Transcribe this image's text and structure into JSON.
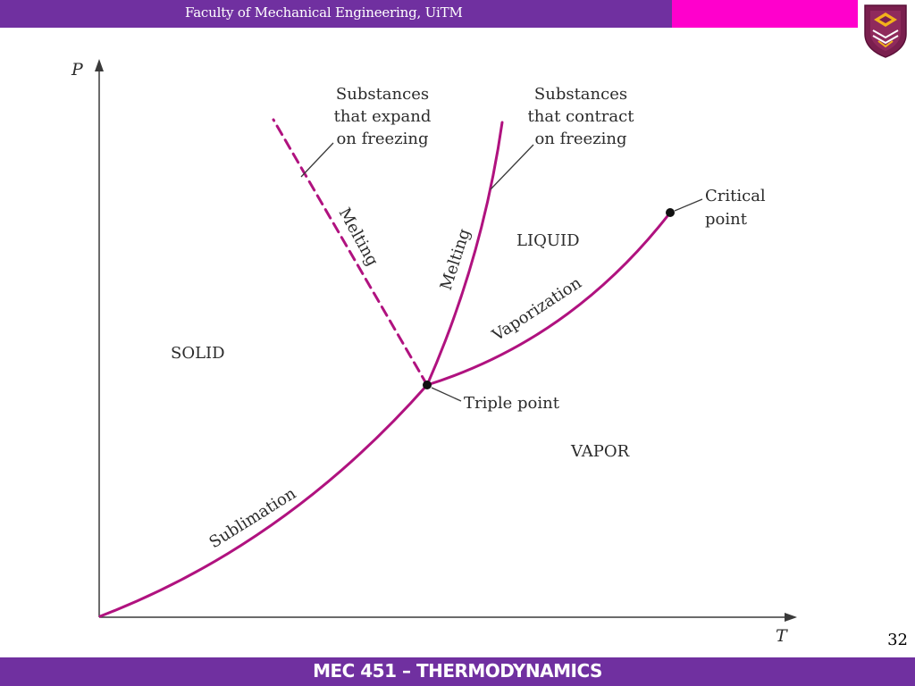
{
  "header": {
    "title": "Faculty of Mechanical Engineering, UiTM",
    "band_color": "#7030a0",
    "accent_color": "#ff00cc"
  },
  "logo": {
    "icon": "uitm-crest-icon"
  },
  "footer": {
    "title": "MEC 451 – THERMODYNAMICS"
  },
  "page_number": "32",
  "diagram": {
    "axes": {
      "y_label": "P",
      "x_label": "T"
    },
    "regions": {
      "solid": "SOLID",
      "liquid": "LIQUID",
      "vapor": "VAPOR"
    },
    "curves": {
      "sublimation": "Sublimation",
      "melting_expand": "Melting",
      "melting_contract": "Melting",
      "vaporization": "Vaporization"
    },
    "points": {
      "triple": "Triple point",
      "critical_line1": "Critical",
      "critical_line2": "point"
    },
    "notes": {
      "expand": [
        "Substances",
        "that expand",
        "on freezing"
      ],
      "contract": [
        "Substances",
        "that contract",
        "on freezing"
      ]
    },
    "curve_color": "#b0127f"
  }
}
